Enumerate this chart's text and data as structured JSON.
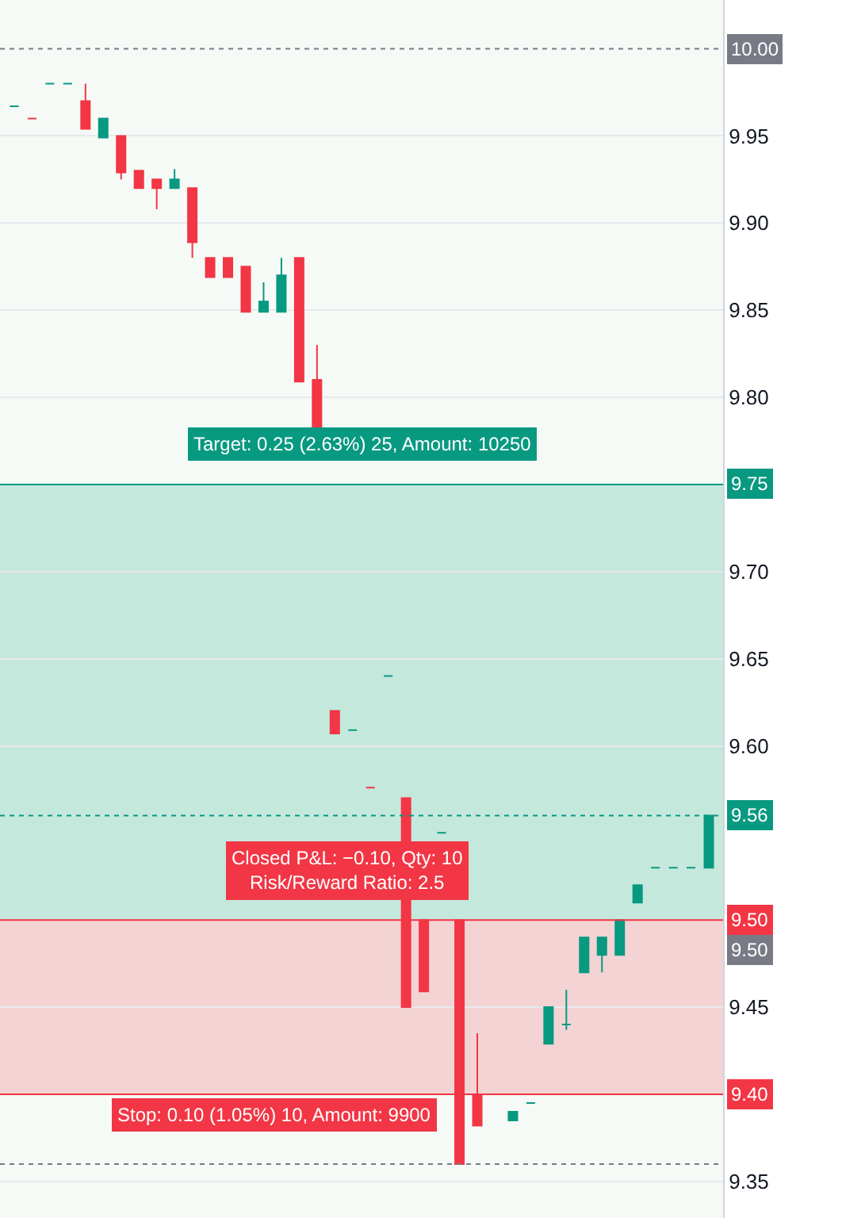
{
  "chart_data": {
    "type": "candlestick",
    "categories": [
      null,
      null,
      null,
      null,
      null,
      null,
      null,
      null,
      null,
      null,
      null,
      null,
      null,
      null,
      null,
      null,
      null,
      null,
      null,
      null,
      null,
      null,
      null,
      null,
      null,
      null,
      null,
      null,
      null,
      null,
      null,
      null,
      null,
      null,
      null,
      null,
      null,
      null,
      null,
      null
    ],
    "ohlc": [
      [
        9.967,
        9.967,
        9.967,
        9.967
      ],
      [
        9.96,
        9.96,
        9.96,
        9.96
      ],
      [
        9.98,
        9.98,
        9.98,
        9.98
      ],
      [
        9.98,
        9.98,
        9.98,
        9.98
      ],
      [
        9.97,
        9.98,
        9.954,
        9.954
      ],
      [
        9.949,
        9.96,
        9.949,
        9.96
      ],
      [
        9.95,
        9.95,
        9.925,
        9.929
      ],
      [
        9.93,
        9.93,
        9.92,
        9.92
      ],
      [
        9.925,
        9.925,
        9.908,
        9.92
      ],
      [
        9.92,
        9.931,
        9.92,
        9.925
      ],
      [
        9.92,
        9.92,
        9.88,
        9.889
      ],
      [
        9.88,
        9.88,
        9.869,
        9.869
      ],
      [
        9.88,
        9.88,
        9.869,
        9.869
      ],
      [
        9.875,
        9.875,
        9.849,
        9.849
      ],
      [
        9.849,
        9.866,
        9.849,
        9.855
      ],
      [
        9.849,
        9.88,
        9.849,
        9.87
      ],
      [
        9.88,
        9.88,
        9.809,
        9.809
      ],
      [
        9.81,
        9.83,
        9.782,
        9.782
      ],
      [
        9.62,
        9.62,
        9.607,
        9.607
      ],
      [
        9.609,
        9.609,
        9.609,
        9.609
      ],
      [
        9.576,
        9.576,
        9.576,
        9.576
      ],
      [
        9.64,
        9.64,
        9.64,
        9.64
      ],
      [
        9.57,
        9.57,
        9.45,
        9.45
      ],
      [
        9.5,
        9.5,
        9.459,
        9.459
      ],
      [
        9.55,
        9.55,
        9.55,
        9.55
      ],
      [
        9.5,
        9.5,
        9.36,
        9.36
      ],
      [
        9.4,
        9.435,
        9.382,
        9.382
      ],
      null,
      [
        9.385,
        9.39,
        9.385,
        9.39
      ],
      [
        9.395,
        9.395,
        9.395,
        9.395
      ],
      [
        9.429,
        9.45,
        9.429,
        9.45
      ],
      [
        9.44,
        9.46,
        9.437,
        9.44
      ],
      [
        9.47,
        9.49,
        9.47,
        9.49
      ],
      [
        9.48,
        9.49,
        9.47,
        9.49
      ],
      [
        9.48,
        9.5,
        9.48,
        9.5
      ],
      [
        9.51,
        9.52,
        9.51,
        9.52
      ],
      [
        9.53,
        9.53,
        9.53,
        9.53
      ],
      [
        9.53,
        9.53,
        9.53,
        9.53
      ],
      [
        9.53,
        9.53,
        9.53,
        9.53
      ],
      [
        9.53,
        9.56,
        9.53,
        9.56
      ]
    ],
    "colors": [
      "#089981",
      "#f23645",
      "#089981",
      "#089981",
      "#f23645",
      "#089981",
      "#f23645",
      "#f23645",
      "#f23645",
      "#089981",
      "#f23645",
      "#f23645",
      "#f23645",
      "#f23645",
      "#089981",
      "#089981",
      "#f23645",
      "#f23645",
      "#f23645",
      "#089981",
      "#f23645",
      "#089981",
      "#f23645",
      "#f23645",
      "#089981",
      "#f23645",
      "#f23645",
      null,
      "#089981",
      "#089981",
      "#089981",
      "#089981",
      "#089981",
      "#089981",
      "#089981",
      "#089981",
      "#089981",
      "#089981",
      "#089981",
      "#089981"
    ],
    "ylim": [
      9.329,
      10.028
    ],
    "yticks": [
      9.35,
      9.45,
      {
        "value": 9.6,
        "label": "9.60"
      },
      9.65,
      {
        "value": 9.7,
        "label": "9.70"
      },
      {
        "value": 9.8,
        "label": "9.80"
      },
      9.85,
      {
        "value": 9.9,
        "label": "9.90"
      },
      9.95
    ],
    "bands": [
      {
        "axis": "y",
        "from": 9.5,
        "to": 9.75,
        "color": "#b9e3d6"
      },
      {
        "axis": "y",
        "from": 9.4,
        "to": 9.5,
        "color": "#f3c9cc"
      }
    ],
    "ref_lines": [
      {
        "axis": "y",
        "value": 10.0,
        "label": "10.00",
        "color": "#787b86",
        "line_style": "dotted"
      },
      {
        "axis": "y",
        "value": 9.75,
        "label": "9.75",
        "color": "#089981",
        "line_style": "solid"
      },
      {
        "axis": "y",
        "value": 9.56,
        "label": "9.56",
        "color": "#089981",
        "line_style": "dotted"
      },
      {
        "axis": "y",
        "value": 9.5,
        "label": "9.50",
        "color": "#f23645",
        "line_style": "solid"
      },
      {
        "axis": "y",
        "value": 9.4,
        "label": "9.40",
        "color": "#f23645",
        "line_style": "solid"
      },
      {
        "axis": "y",
        "value": 9.36,
        "label": null,
        "color": "#787b86",
        "line_style": "dotted"
      }
    ],
    "annotations": [
      "Target: 0.25 (2.63%) 25, Amount: 10250",
      "Closed P&L: −0.10, Qty: 10\nRisk/Reward Ratio: 2.5",
      "Stop: 0.10 (1.05%) 10, Amount: 9900",
      "9.50"
    ],
    "grid": true
  }
}
